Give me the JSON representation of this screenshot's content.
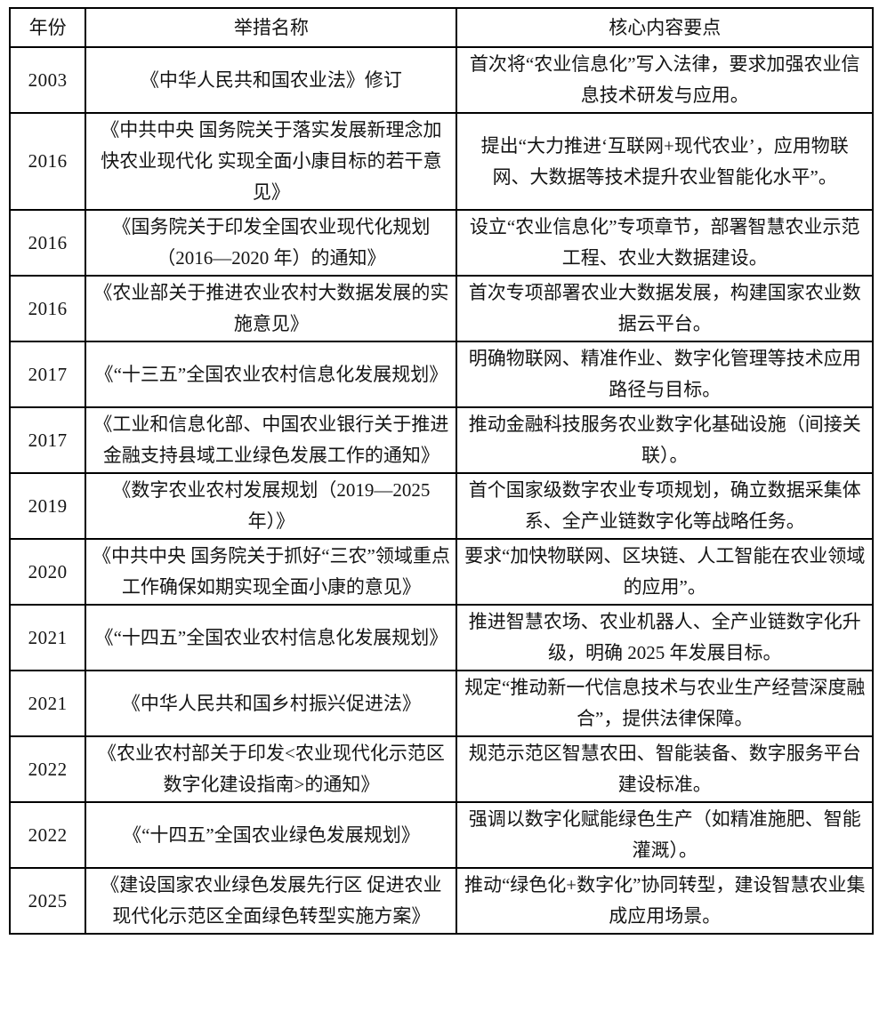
{
  "colors": {
    "background": "#ffffff",
    "border": "#000000",
    "text": "#141414"
  },
  "table": {
    "headers": [
      "年份",
      "举措名称",
      "核心内容要点"
    ],
    "rows": [
      {
        "year": "2003",
        "name": "《中华人民共和国农业法》修订",
        "points": "首次将“农业信息化”写入法律，要求加强农业信息技术研发与应用。"
      },
      {
        "year": "2016",
        "name": "《中共中央 国务院关于落实发展新理念加快农业现代化 实现全面小康目标的若干意见》",
        "points": "提出“大力推进‘互联网+现代农业’，应用物联网、大数据等技术提升农业智能化水平”。"
      },
      {
        "year": "2016",
        "name": "《国务院关于印发全国农业现代化规划（2016—2020 年）的通知》",
        "points": "设立“农业信息化”专项章节，部署智慧农业示范工程、农业大数据建设。"
      },
      {
        "year": "2016",
        "name": "《农业部关于推进农业农村大数据发展的实施意见》",
        "points": "首次专项部署农业大数据发展，构建国家农业数据云平台。"
      },
      {
        "year": "2017",
        "name": "《“十三五”全国农业农村信息化发展规划》",
        "points": "明确物联网、精准作业、数字化管理等技术应用路径与目标。"
      },
      {
        "year": "2017",
        "name": "《工业和信息化部、中国农业银行关于推进金融支持县域工业绿色发展工作的通知》",
        "points": "推动金融科技服务农业数字化基础设施（间接关联）。"
      },
      {
        "year": "2019",
        "name": "《数字农业农村发展规划（2019—2025 年）》",
        "points": "首个国家级数字农业专项规划，确立数据采集体系、全产业链数字化等战略任务。"
      },
      {
        "year": "2020",
        "name": "《中共中央 国务院关于抓好“三农”领域重点工作确保如期实现全面小康的意见》",
        "points": "要求“加快物联网、区块链、人工智能在农业领域的应用”。"
      },
      {
        "year": "2021",
        "name": "《“十四五”全国农业农村信息化发展规划》",
        "points": "推进智慧农场、农业机器人、全产业链数字化升级，明确 2025 年发展目标。"
      },
      {
        "year": "2021",
        "name": "《中华人民共和国乡村振兴促进法》",
        "points": "规定“推动新一代信息技术与农业生产经营深度融合”，提供法律保障。"
      },
      {
        "year": "2022",
        "name": "《农业农村部关于印发<农业现代化示范区数字化建设指南>的通知》",
        "points": "规范示范区智慧农田、智能装备、数字服务平台建设标准。"
      },
      {
        "year": "2022",
        "name": "《“十四五”全国农业绿色发展规划》",
        "points": "强调以数字化赋能绿色生产（如精准施肥、智能灌溉）。"
      },
      {
        "year": "2025",
        "name": "《建设国家农业绿色发展先行区 促进农业现代化示范区全面绿色转型实施方案》",
        "points": "推动“绿色化+数字化”协同转型，建设智慧农业集成应用场景。"
      }
    ]
  }
}
